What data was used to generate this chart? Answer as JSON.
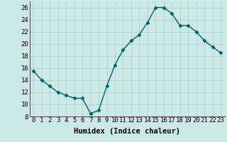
{
  "x": [
    0,
    1,
    2,
    3,
    4,
    5,
    6,
    7,
    8,
    9,
    10,
    11,
    12,
    13,
    14,
    15,
    16,
    17,
    18,
    19,
    20,
    21,
    22,
    23
  ],
  "y": [
    15.5,
    14,
    13,
    12,
    11.5,
    11,
    11,
    8.5,
    9,
    13,
    16.5,
    19,
    20.5,
    21.5,
    23.5,
    26,
    26,
    25,
    23,
    23,
    22,
    20.5,
    19.5,
    18.5
  ],
  "line_color": "#006060",
  "marker": "D",
  "marker_size": 2.5,
  "background_color": "#cce8e8",
  "grid_color": "#aacccc",
  "xlabel": "Humidex (Indice chaleur)",
  "xlim": [
    -0.5,
    23.5
  ],
  "ylim": [
    8,
    27
  ],
  "yticks": [
    8,
    10,
    12,
    14,
    16,
    18,
    20,
    22,
    24,
    26
  ],
  "xticks": [
    0,
    1,
    2,
    3,
    4,
    5,
    6,
    7,
    8,
    9,
    10,
    11,
    12,
    13,
    14,
    15,
    16,
    17,
    18,
    19,
    20,
    21,
    22,
    23
  ],
  "xlabel_fontsize": 7.5,
  "tick_fontsize": 6.5
}
